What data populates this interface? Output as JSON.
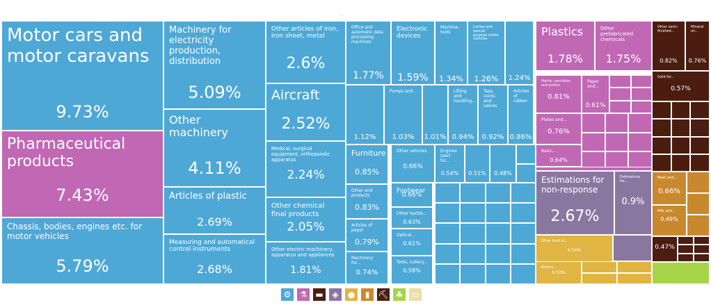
{
  "chart_data": {
    "type": "treemap",
    "title": "",
    "colors": {
      "machinery": "#4ea8d6",
      "chemicals": "#c068b4",
      "estimations": "#8a77a0",
      "metals": "#4a1d10",
      "foodstuffs": "#e0b544",
      "animal": "#c8892e",
      "vegetable": "#a8d44a"
    },
    "tiles": [
      {
        "label": "Motor cars and motor caravans",
        "value": "9.73%",
        "group": "machinery"
      },
      {
        "label": "Pharmaceutical products",
        "value": "7.43%",
        "group": "chemicals"
      },
      {
        "label": "Chassis, bodies, engines etc. for motor vehicles",
        "value": "5.79%",
        "group": "machinery"
      },
      {
        "label": "Machinery for electricity production, distribution",
        "value": "5.09%",
        "group": "machinery"
      },
      {
        "label": "Other machinery",
        "value": "4.11%",
        "group": "machinery"
      },
      {
        "label": "Articles of plastic",
        "value": "2.69%",
        "group": "machinery"
      },
      {
        "label": "Measuring and automatical control instruments",
        "value": "2.68%",
        "group": "machinery"
      },
      {
        "label": "Other articles of iron, iron sheet, metal",
        "value": "2.6%",
        "group": "machinery"
      },
      {
        "label": "Aircraft",
        "value": "2.52%",
        "group": "machinery"
      },
      {
        "label": "Medical, surgical equipment, orthopaedic apparatus",
        "value": "2.24%",
        "group": "machinery"
      },
      {
        "label": "Other chemical final products",
        "value": "2.05%",
        "group": "machinery"
      },
      {
        "label": "Other electric machinery, apparatus and appliances",
        "value": "1.81%",
        "group": "machinery"
      },
      {
        "label": "Office and automatic data processing machines",
        "value": "1.77%",
        "group": "machinery"
      },
      {
        "label": "Electronic devices",
        "value": "1.59%",
        "group": "machinery"
      },
      {
        "label": "Machine-tools",
        "value": "1.34%",
        "group": "machinery"
      },
      {
        "label": "Lorries and special purpose motor vehicles",
        "value": "1.26%",
        "group": "machinery"
      },
      {
        "label": "",
        "value": "1.24%",
        "group": "machinery"
      },
      {
        "label": "",
        "value": "1.12%",
        "group": "machinery"
      },
      {
        "label": "Pumps and...",
        "value": "1.03%",
        "group": "machinery"
      },
      {
        "label": "",
        "value": "1.01%",
        "group": "machinery"
      },
      {
        "label": "Lifting and handling...",
        "value": "0.94%",
        "group": "machinery"
      },
      {
        "label": "Taps, cocks and valves",
        "value": "0.92%",
        "group": "machinery"
      },
      {
        "label": "Articles of rubber",
        "value": "0.86%",
        "group": "machinery"
      },
      {
        "label": "Furniture",
        "value": "0.85%",
        "group": "machinery"
      },
      {
        "label": "Other vehicles",
        "value": "0.66%",
        "group": "machinery"
      },
      {
        "label": "Engines (excl for...",
        "value": "0.54%",
        "group": "machinery"
      },
      {
        "label": "",
        "value": "0.51%",
        "group": "machinery"
      },
      {
        "label": "",
        "value": "0.48%",
        "group": "machinery"
      },
      {
        "label": "Footwear",
        "value": "0.66%",
        "group": "machinery"
      },
      {
        "label": "Other end products",
        "value": "0.83%",
        "group": "machinery"
      },
      {
        "label": "Other textile...",
        "value": "0.63%",
        "group": "machinery"
      },
      {
        "label": "Articles of paper",
        "value": "0.79%",
        "group": "machinery"
      },
      {
        "label": "Optical...",
        "value": "0.61%",
        "group": "machinery"
      },
      {
        "label": "Machinery for...",
        "value": "0.74%",
        "group": "machinery"
      },
      {
        "label": "Tools, cutlery...",
        "value": "0.58%",
        "group": "machinery"
      },
      {
        "label": "Plastics",
        "value": "1.78%",
        "group": "chemicals"
      },
      {
        "label": "Other prefabricated chemicals",
        "value": "1.75%",
        "group": "chemicals"
      },
      {
        "label": "Paints, varnishes and puttys",
        "value": "0.81%",
        "group": "chemicals"
      },
      {
        "label": "Paper and...",
        "value": "0.61%",
        "group": "chemicals"
      },
      {
        "label": "Plates and...",
        "value": "0.76%",
        "group": "chemicals"
      },
      {
        "label": "Basic...",
        "value": "0.64%",
        "group": "chemicals"
      },
      {
        "label": "Estimations for non-response",
        "value": "2.67%",
        "group": "estimations"
      },
      {
        "label": "Estimations for...",
        "value": "0.9%",
        "group": "estimations"
      },
      {
        "label": "Other semi-finished...",
        "value": "0.82%",
        "group": "metals"
      },
      {
        "label": "Mineral oil...",
        "value": "0.76%",
        "group": "metals"
      },
      {
        "label": "Gold for...",
        "value": "0.57%",
        "group": "metals"
      },
      {
        "label": "Meat and...",
        "value": "0.66%",
        "group": "animal"
      },
      {
        "label": "Milk and...",
        "value": "0.49%",
        "group": "animal"
      },
      {
        "label": "",
        "value": "0.47%",
        "group": "metals"
      },
      {
        "label": "Other food of...",
        "value": "0.54%",
        "group": "foodstuffs"
      },
      {
        "label": "Bakery...",
        "value": "0.53%",
        "group": "foodstuffs"
      }
    ]
  },
  "legend": [
    {
      "name": "machinery-icon",
      "glyph": "⚙",
      "color": "#4ea8d6"
    },
    {
      "name": "chemicals-icon",
      "glyph": "⚗",
      "color": "#c068b4"
    },
    {
      "name": "metals-icon",
      "glyph": "▬",
      "color": "#4a1d10"
    },
    {
      "name": "estimations-icon",
      "glyph": "◈",
      "color": "#8a77a0"
    },
    {
      "name": "foodstuffs-icon",
      "glyph": "●",
      "color": "#e0b544"
    },
    {
      "name": "mineral-products-icon",
      "glyph": "▮",
      "color": "#c8892e"
    },
    {
      "name": "stone-glass-icon",
      "glyph": "⛏",
      "color": "#4a1d10"
    },
    {
      "name": "vegetable-products-icon",
      "glyph": "♣",
      "color": "#a8d44a"
    },
    {
      "name": "animal-hides-icon",
      "glyph": "▭",
      "color": "#e9dfa8"
    }
  ]
}
